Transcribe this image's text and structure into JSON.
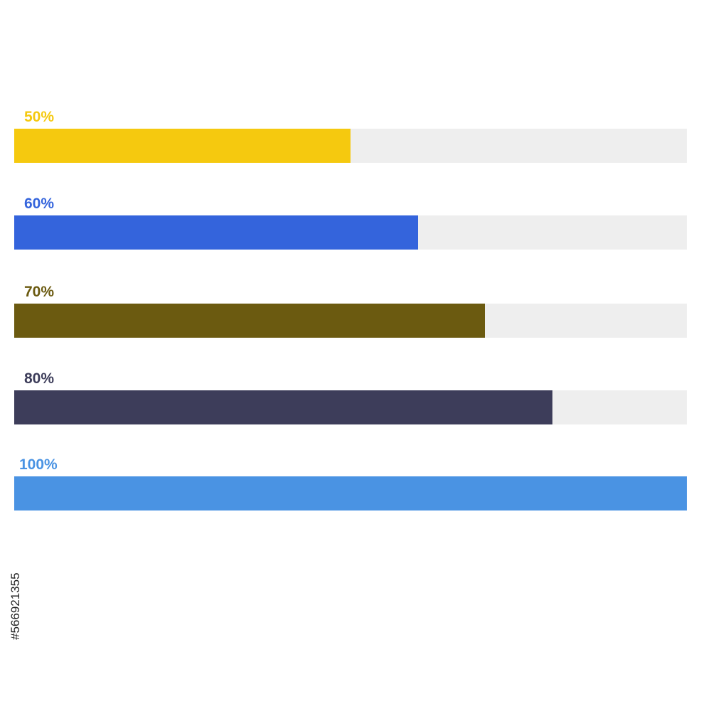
{
  "chart_data": {
    "type": "bar",
    "orientation": "horizontal",
    "range": [
      0,
      100
    ],
    "unit": "%",
    "bars": [
      {
        "label": "50%",
        "value": 50,
        "color": "#f5c90f"
      },
      {
        "label": "60%",
        "value": 60,
        "color": "#3464dc"
      },
      {
        "label": "70%",
        "value": 70,
        "color": "#6b5a10"
      },
      {
        "label": "80%",
        "value": 80,
        "color": "#3d3d5a"
      },
      {
        "label": "100%",
        "value": 100,
        "color": "#4a93e3"
      }
    ],
    "track_color": "#eeeeee",
    "title": "",
    "xlabel": "",
    "ylabel": "",
    "grid": false,
    "legend": "none"
  },
  "watermark": {
    "stock_id": "#566921355"
  }
}
